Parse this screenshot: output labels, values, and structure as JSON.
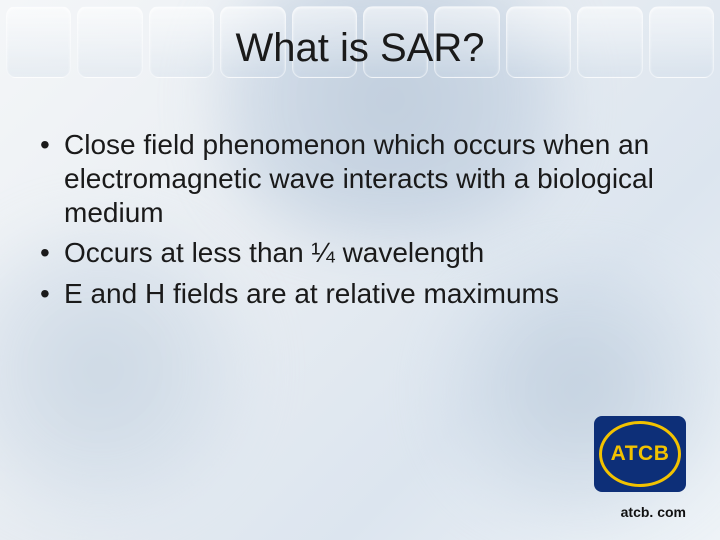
{
  "title": "What is SAR?",
  "bullets": [
    "Close field phenomenon which occurs when an electromagnetic wave interacts with a biological medium",
    "Occurs at less than ¼ wavelength",
    "E and H fields are at relative maximums"
  ],
  "logo": {
    "text": "ATCB",
    "bg_color": "#0d2f78",
    "ring_color": "#f2c200",
    "text_color": "#f2c200"
  },
  "footer": "atcb. com",
  "colors": {
    "title": "#1a1a1a",
    "body": "#1a1a1a",
    "bg_gradient": [
      "#f4f6f8",
      "#e8edf2",
      "#dce5ef",
      "#eef3f7"
    ]
  },
  "typography": {
    "title_fontsize": 40,
    "body_fontsize": 28,
    "footer_fontsize": 14
  }
}
